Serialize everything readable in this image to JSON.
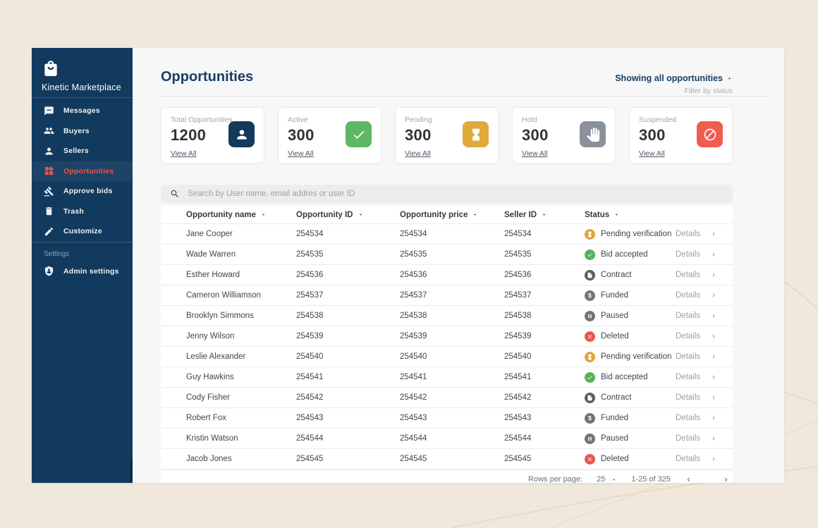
{
  "brand": {
    "name": "Kinetic Marketplace",
    "logo_icon": "shopping-bag"
  },
  "sidebar": {
    "items": [
      {
        "label": "Messages",
        "icon": "chat"
      },
      {
        "label": "Buyers",
        "icon": "people"
      },
      {
        "label": "Sellers",
        "icon": "person"
      },
      {
        "label": "Opportunities",
        "icon": "widgets",
        "active": true
      },
      {
        "label": "Approve bids",
        "icon": "gavel"
      },
      {
        "label": "Trash",
        "icon": "trash"
      },
      {
        "label": "Customize",
        "icon": "pencil"
      }
    ],
    "settings_section_label": "Settings",
    "settings_items": [
      {
        "label": "Admin settings",
        "icon": "admin"
      }
    ]
  },
  "header": {
    "title": "Opportunities",
    "filter_label": "Showing all opportunities",
    "filter_sublabel": "Filter by status"
  },
  "stats": [
    {
      "label": "Total Opportunities",
      "value": "1200",
      "link": "View All",
      "icon": "person",
      "color": "#14395c"
    },
    {
      "label": "Active",
      "value": "300",
      "link": "View All",
      "icon": "check",
      "color": "#5fb763"
    },
    {
      "label": "Pending",
      "value": "300",
      "link": "View All",
      "icon": "hourglass",
      "color": "#e0a93b"
    },
    {
      "label": "Hold",
      "value": "300",
      "link": "View All",
      "icon": "hand",
      "color": "#8b919b"
    },
    {
      "label": "Suspended",
      "value": "300",
      "link": "View All",
      "icon": "block",
      "color": "#f05c50"
    }
  ],
  "search": {
    "placeholder": "Search by User name, email addres or user ID"
  },
  "table": {
    "columns": [
      "Opportunity name",
      "Opportunity ID",
      "Opportunity price",
      "Seller ID",
      "Status"
    ],
    "details_label": "Details",
    "rows": [
      {
        "name": "Jane Cooper",
        "id": "254534",
        "price": "254534",
        "seller": "254534",
        "status": "Pending verification",
        "status_key": "pending"
      },
      {
        "name": "Wade Warren",
        "id": "254535",
        "price": "254535",
        "seller": "254535",
        "status": "Bid accepted",
        "status_key": "accepted"
      },
      {
        "name": "Esther Howard",
        "id": "254536",
        "price": "254536",
        "seller": "254536",
        "status": "Contract",
        "status_key": "contract"
      },
      {
        "name": "Cameron Williamson",
        "id": "254537",
        "price": "254537",
        "seller": "254537",
        "status": "Funded",
        "status_key": "funded"
      },
      {
        "name": "Brooklyn Simmons",
        "id": "254538",
        "price": "254538",
        "seller": "254538",
        "status": "Paused",
        "status_key": "paused"
      },
      {
        "name": "Jenny Wilson",
        "id": "254539",
        "price": "254539",
        "seller": "254539",
        "status": "Deleted",
        "status_key": "deleted"
      },
      {
        "name": "Leslie Alexander",
        "id": "254540",
        "price": "254540",
        "seller": "254540",
        "status": "Pending verification",
        "status_key": "pending"
      },
      {
        "name": "Guy Hawkins",
        "id": "254541",
        "price": "254541",
        "seller": "254541",
        "status": "Bid accepted",
        "status_key": "accepted"
      },
      {
        "name": "Cody Fisher",
        "id": "254542",
        "price": "254542",
        "seller": "254542",
        "status": "Contract",
        "status_key": "contract"
      },
      {
        "name": "Robert Fox",
        "id": "254543",
        "price": "254543",
        "seller": "254543",
        "status": "Funded",
        "status_key": "funded"
      },
      {
        "name": "Kristin Watson",
        "id": "254544",
        "price": "254544",
        "seller": "254544",
        "status": "Paused",
        "status_key": "paused"
      },
      {
        "name": "Jacob Jones",
        "id": "254545",
        "price": "254545",
        "seller": "254545",
        "status": "Deleted",
        "status_key": "deleted"
      }
    ]
  },
  "status_colors": {
    "pending": "#e2a43c",
    "accepted": "#57b05b",
    "contract": "#575e68",
    "funded": "#6e757e",
    "paused": "#6e757e",
    "deleted": "#e9584f"
  },
  "pagination": {
    "rows_label": "Rows per page:",
    "per_page": "25",
    "range": "1-25 of 325"
  },
  "colors": {
    "background": "#f0e8da",
    "sidebar": "#123a5e",
    "accent_red": "#e8544e",
    "title_navy": "#1c3e63"
  }
}
